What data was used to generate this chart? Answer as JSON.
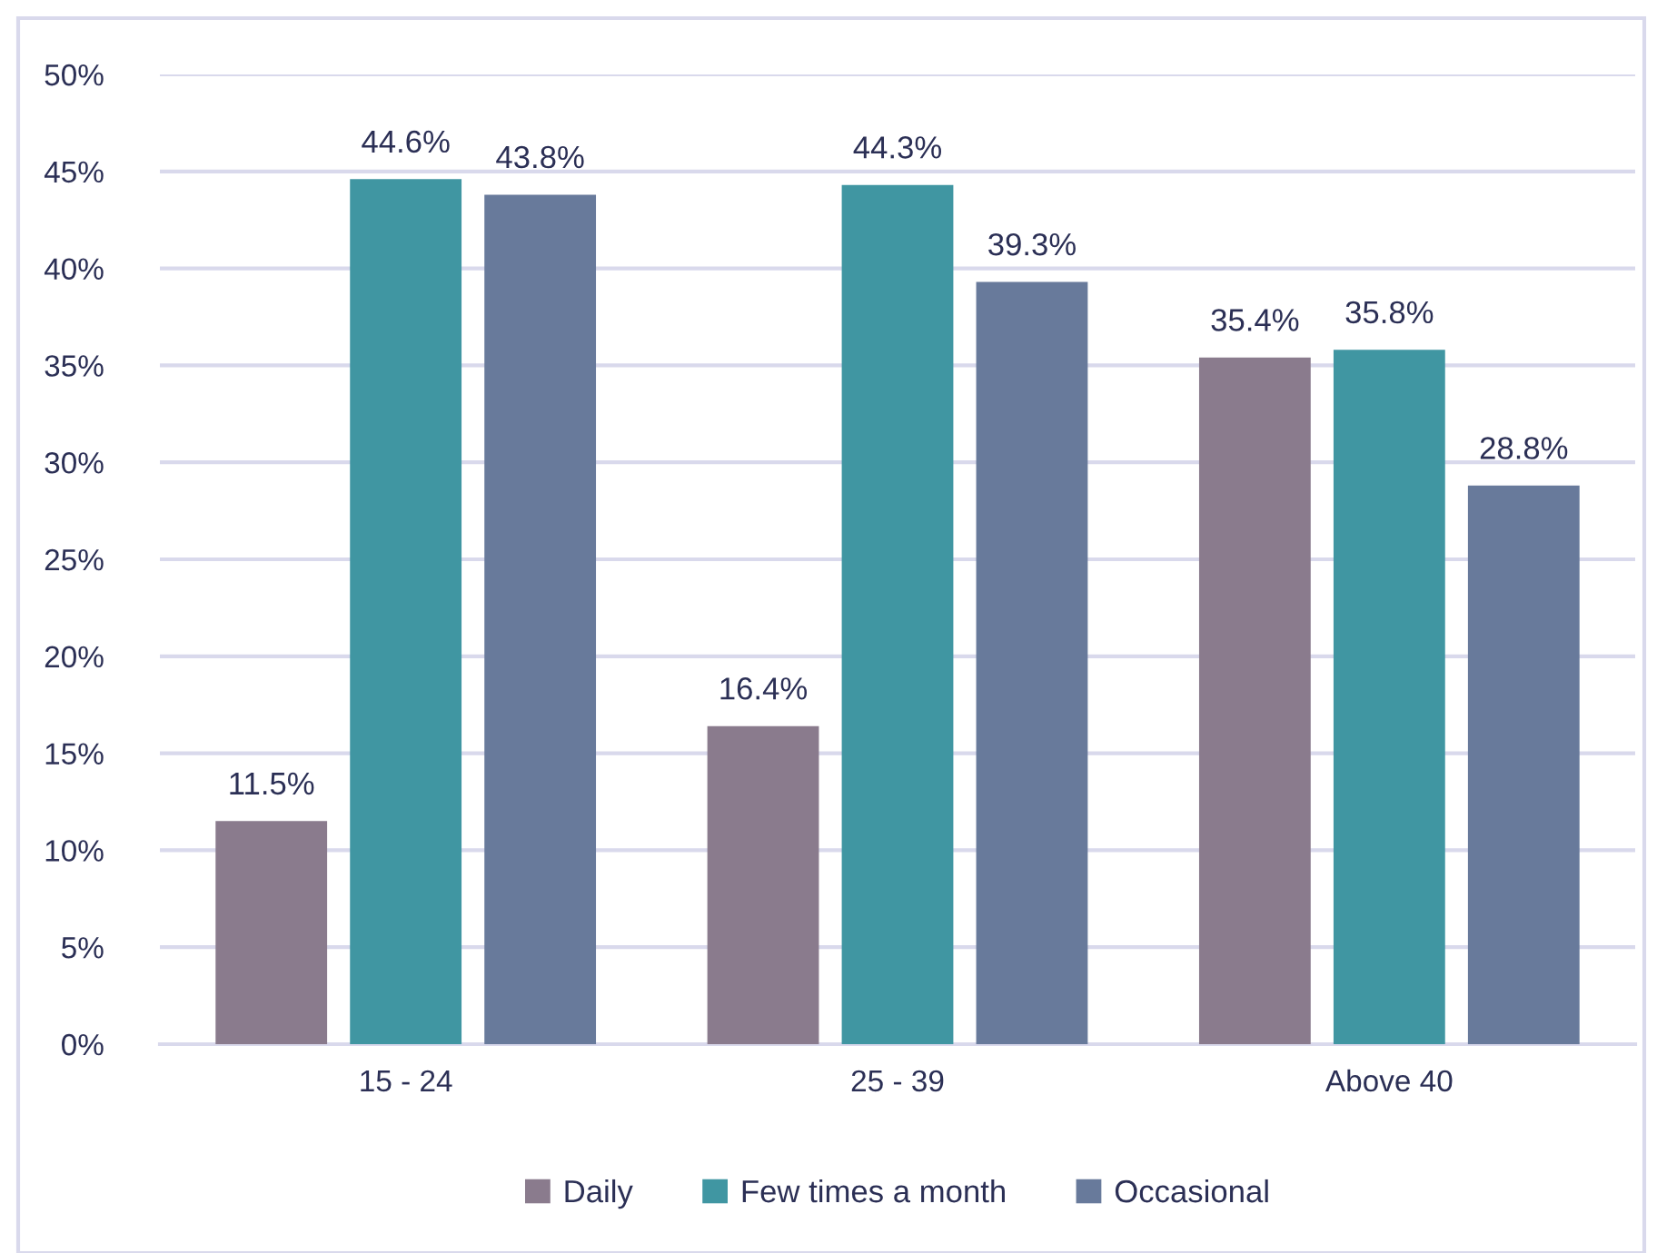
{
  "chart_data": {
    "type": "bar",
    "categories": [
      "15 - 24",
      "25 - 39",
      "Above 40"
    ],
    "series": [
      {
        "name": "Daily",
        "color": "#8a7b8d",
        "values": [
          11.5,
          16.4,
          35.4
        ],
        "value_labels": [
          "11.5%",
          "16.4%",
          "35.4%"
        ]
      },
      {
        "name": "Few times a month",
        "color": "#4096a2",
        "values": [
          44.6,
          44.3,
          35.8
        ],
        "value_labels": [
          "44.6%",
          "44.3%",
          "35.8%"
        ]
      },
      {
        "name": "Occasional",
        "color": "#687a9b",
        "values": [
          43.8,
          39.3,
          28.8
        ],
        "value_labels": [
          "43.8%",
          "39.3%",
          "28.8%"
        ]
      }
    ],
    "ylim": [
      0,
      50
    ],
    "yticks": [
      {
        "value": 0,
        "label": "0%"
      },
      {
        "value": 5,
        "label": "5%"
      },
      {
        "value": 10,
        "label": "10%"
      },
      {
        "value": 15,
        "label": "15%"
      },
      {
        "value": 20,
        "label": "20%"
      },
      {
        "value": 25,
        "label": "25%"
      },
      {
        "value": 30,
        "label": "30%"
      },
      {
        "value": 35,
        "label": "35%"
      },
      {
        "value": 40,
        "label": "40%"
      },
      {
        "value": 45,
        "label": "45%"
      },
      {
        "value": 50,
        "label": "50%"
      }
    ],
    "grid": "y",
    "legend": "bottom"
  }
}
